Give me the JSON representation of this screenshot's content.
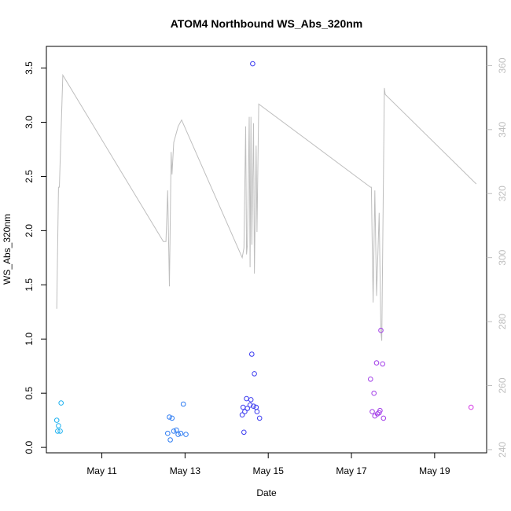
{
  "chart_data": {
    "type": "scatter",
    "title": "ATOM4 Northbound WS_Abs_320nm",
    "xlabel": "Date",
    "ylabel": "WS_Abs_320nm",
    "x_ticks": [
      "May 11",
      "May 13",
      "May 15",
      "May 17",
      "May 19"
    ],
    "y_ticks": [
      "0.0",
      "0.5",
      "1.0",
      "1.5",
      "2.0",
      "2.5",
      "3.0",
      "3.5"
    ],
    "y2_ticks": [
      "240",
      "260",
      "280",
      "300",
      "320",
      "340",
      "360"
    ],
    "xlim": [
      "2024-05-09 16:00",
      "2024-05-20 06:00"
    ],
    "ylim": [
      -0.05,
      3.7
    ],
    "y2lim": [
      239,
      366
    ],
    "grid": false,
    "legend": "none",
    "colors": {
      "axis": "#000000",
      "right_axis": "#bebebe",
      "line": "#bebebe"
    },
    "series": [
      {
        "type": "scatter",
        "marker": "open-circle",
        "points": [
          {
            "x": "2024-05-09 22:00",
            "y": 0.25,
            "color": "#1fb2f0"
          },
          {
            "x": "2024-05-09 23:00",
            "y": 0.2,
            "color": "#1fb2f0"
          },
          {
            "x": "2024-05-09 22:30",
            "y": 0.15,
            "color": "#1fb2f0"
          },
          {
            "x": "2024-05-10 00:00",
            "y": 0.15,
            "color": "#1fb2f0"
          },
          {
            "x": "2024-05-10 00:30",
            "y": 0.41,
            "color": "#1fb2f0"
          },
          {
            "x": "2024-05-12 15:00",
            "y": 0.28,
            "color": "#2f7df2"
          },
          {
            "x": "2024-05-12 16:30",
            "y": 0.27,
            "color": "#2f7df2"
          },
          {
            "x": "2024-05-12 14:00",
            "y": 0.13,
            "color": "#2f7df2"
          },
          {
            "x": "2024-05-12 17:30",
            "y": 0.15,
            "color": "#2f7df2"
          },
          {
            "x": "2024-05-12 19:00",
            "y": 0.16,
            "color": "#2f7df2"
          },
          {
            "x": "2024-05-12 21:30",
            "y": 0.13,
            "color": "#2f7df2"
          },
          {
            "x": "2024-05-12 23:00",
            "y": 0.4,
            "color": "#2f7df2"
          },
          {
            "x": "2024-05-13 00:30",
            "y": 0.12,
            "color": "#2f7df2"
          },
          {
            "x": "2024-05-12 15:30",
            "y": 0.07,
            "color": "#2f7df2"
          },
          {
            "x": "2024-05-12 20:00",
            "y": 0.12,
            "color": "#2f7df2"
          },
          {
            "x": "2024-05-14 10:00",
            "y": 0.14,
            "color": "#3b3bf0"
          },
          {
            "x": "2024-05-14 09:00",
            "y": 0.3,
            "color": "#3b3bf0"
          },
          {
            "x": "2024-05-14 10:30",
            "y": 0.33,
            "color": "#3b3bf0"
          },
          {
            "x": "2024-05-14 09:30",
            "y": 0.37,
            "color": "#3b3bf0"
          },
          {
            "x": "2024-05-14 12:00",
            "y": 0.36,
            "color": "#3b3bf0"
          },
          {
            "x": "2024-05-14 13:30",
            "y": 0.39,
            "color": "#3b3bf0"
          },
          {
            "x": "2024-05-14 11:30",
            "y": 0.45,
            "color": "#3b3bf0"
          },
          {
            "x": "2024-05-14 14:00",
            "y": 0.44,
            "color": "#3b3bf0"
          },
          {
            "x": "2024-05-14 15:30",
            "y": 0.38,
            "color": "#3b3bf0"
          },
          {
            "x": "2024-05-14 17:00",
            "y": 0.37,
            "color": "#3b3bf0"
          },
          {
            "x": "2024-05-14 17:30",
            "y": 0.33,
            "color": "#3b3bf0"
          },
          {
            "x": "2024-05-14 19:00",
            "y": 0.27,
            "color": "#3b3bf0"
          },
          {
            "x": "2024-05-14 14:30",
            "y": 0.86,
            "color": "#3b3bf0"
          },
          {
            "x": "2024-05-14 16:00",
            "y": 0.68,
            "color": "#3b3bf0"
          },
          {
            "x": "2024-05-14 15:00",
            "y": 3.54,
            "color": "#3b3bf0"
          },
          {
            "x": "2024-05-17 11:00",
            "y": 0.63,
            "color": "#a23de8"
          },
          {
            "x": "2024-05-17 13:00",
            "y": 0.5,
            "color": "#a23de8"
          },
          {
            "x": "2024-05-17 14:30",
            "y": 0.78,
            "color": "#a23de8"
          },
          {
            "x": "2024-05-17 12:00",
            "y": 0.33,
            "color": "#a23de8"
          },
          {
            "x": "2024-05-17 13:30",
            "y": 0.29,
            "color": "#a23de8"
          },
          {
            "x": "2024-05-17 15:00",
            "y": 0.31,
            "color": "#a23de8"
          },
          {
            "x": "2024-05-17 16:00",
            "y": 0.32,
            "color": "#a23de8"
          },
          {
            "x": "2024-05-17 16:30",
            "y": 0.34,
            "color": "#a23de8"
          },
          {
            "x": "2024-05-17 18:30",
            "y": 0.27,
            "color": "#a23de8"
          },
          {
            "x": "2024-05-17 17:00",
            "y": 1.08,
            "color": "#a23de8"
          },
          {
            "x": "2024-05-17 18:00",
            "y": 0.77,
            "color": "#a23de8"
          },
          {
            "x": "2024-05-19 21:00",
            "y": 0.37,
            "color": "#d63be6"
          }
        ]
      },
      {
        "type": "line",
        "axis": "right",
        "color": "#bebebe",
        "points": [
          {
            "x": "2024-05-09 22:00",
            "y": 284
          },
          {
            "x": "2024-05-09 23:00",
            "y": 322
          },
          {
            "x": "2024-05-09 23:30",
            "y": 322
          },
          {
            "x": "2024-05-10 01:30",
            "y": 357
          },
          {
            "x": "2024-05-12 11:30",
            "y": 305
          },
          {
            "x": "2024-05-12 13:00",
            "y": 305
          },
          {
            "x": "2024-05-12 14:00",
            "y": 321
          },
          {
            "x": "2024-05-12 15:00",
            "y": 291
          },
          {
            "x": "2024-05-12 16:00",
            "y": 333
          },
          {
            "x": "2024-05-12 16:30",
            "y": 326
          },
          {
            "x": "2024-05-12 17:30",
            "y": 336
          },
          {
            "x": "2024-05-12 20:00",
            "y": 341
          },
          {
            "x": "2024-05-12 22:00",
            "y": 343
          },
          {
            "x": "2024-05-14 09:00",
            "y": 300
          },
          {
            "x": "2024-05-14 10:00",
            "y": 303
          },
          {
            "x": "2024-05-14 11:00",
            "y": 341
          },
          {
            "x": "2024-05-14 11:30",
            "y": 301
          },
          {
            "x": "2024-05-14 12:00",
            "y": 304
          },
          {
            "x": "2024-05-14 13:00",
            "y": 344
          },
          {
            "x": "2024-05-14 13:30",
            "y": 297
          },
          {
            "x": "2024-05-14 14:00",
            "y": 344
          },
          {
            "x": "2024-05-14 14:30",
            "y": 304
          },
          {
            "x": "2024-05-14 15:30",
            "y": 342
          },
          {
            "x": "2024-05-14 16:00",
            "y": 295
          },
          {
            "x": "2024-05-14 17:00",
            "y": 335
          },
          {
            "x": "2024-05-14 17:30",
            "y": 308
          },
          {
            "x": "2024-05-14 18:30",
            "y": 348
          },
          {
            "x": "2024-05-17 11:00",
            "y": 322
          },
          {
            "x": "2024-05-17 11:30",
            "y": 322
          },
          {
            "x": "2024-05-17 12:30",
            "y": 286
          },
          {
            "x": "2024-05-17 13:30",
            "y": 321
          },
          {
            "x": "2024-05-17 14:30",
            "y": 288
          },
          {
            "x": "2024-05-17 16:00",
            "y": 314
          },
          {
            "x": "2024-05-17 17:00",
            "y": 277
          },
          {
            "x": "2024-05-17 17:30",
            "y": 274
          },
          {
            "x": "2024-05-17 19:00",
            "y": 353
          },
          {
            "x": "2024-05-17 19:30",
            "y": 351
          },
          {
            "x": "2024-05-20 00:00",
            "y": 323
          }
        ]
      }
    ]
  }
}
